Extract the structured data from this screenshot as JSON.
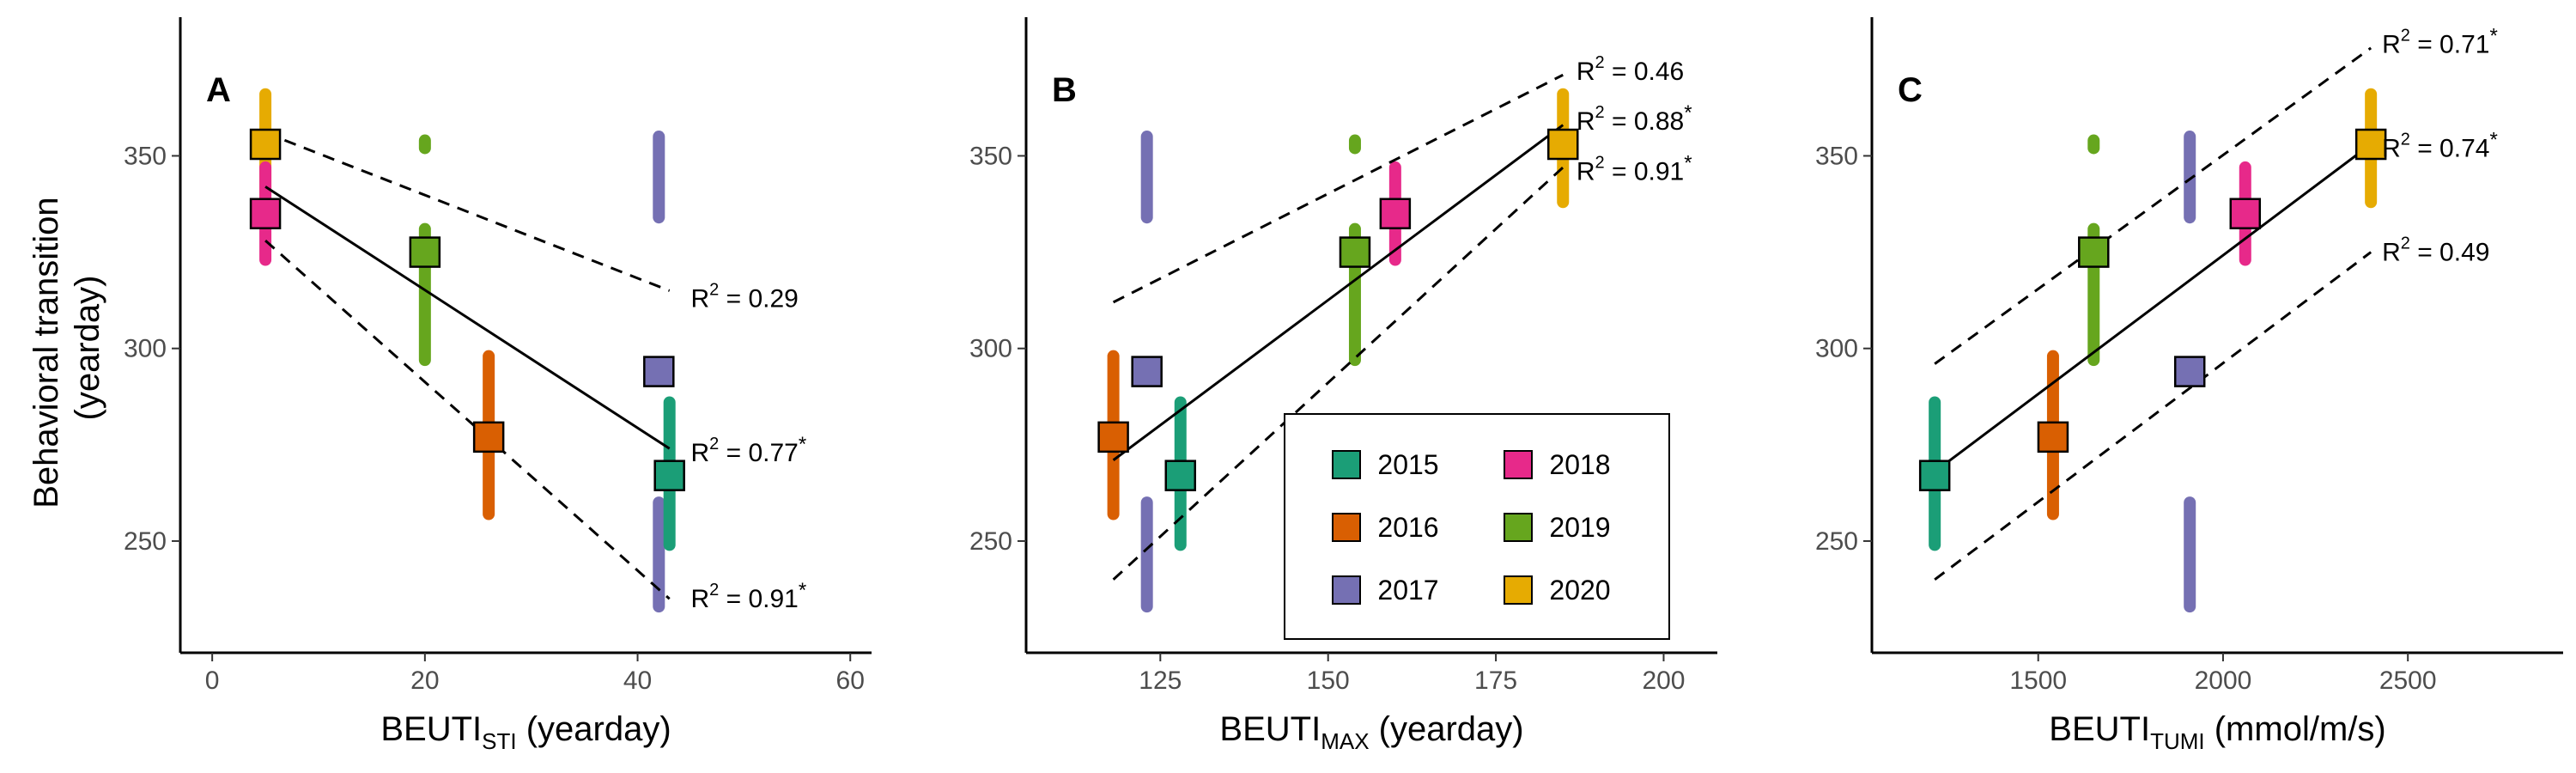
{
  "ylabel": [
    "Behavioral transition",
    "(yearday)"
  ],
  "colors": {
    "2015": "#1b9e77",
    "2016": "#d95f02",
    "2017": "#7570b3",
    "2018": "#e7298a",
    "2019": "#66a61e",
    "2020": "#e6ab02"
  },
  "legend": {
    "entries": [
      "2015",
      "2018",
      "2016",
      "2019",
      "2017",
      "2020"
    ]
  },
  "chart_data": [
    {
      "type": "scatter",
      "panel": "A",
      "xlabel_main": "BEUTI",
      "xlabel_sub": "STI",
      "xlabel_unit": " (yearday)",
      "xlim": [
        -3,
        62
      ],
      "ylim": [
        221,
        386
      ],
      "xticks": [
        0,
        20,
        40,
        60
      ],
      "yticks": [
        250,
        300,
        350
      ],
      "means": [
        {
          "year": "2015",
          "x": 43,
          "y": 267
        },
        {
          "year": "2016",
          "x": 26,
          "y": 277
        },
        {
          "year": "2017",
          "x": 42,
          "y": 294
        },
        {
          "year": "2018",
          "x": 5,
          "y": 335
        },
        {
          "year": "2019",
          "x": 20,
          "y": 325
        },
        {
          "year": "2020",
          "x": 5,
          "y": 353
        }
      ],
      "ranges": [
        {
          "year": "2020",
          "x": 5,
          "y": [
            338,
            366
          ]
        },
        {
          "year": "2018",
          "x": 5,
          "y": [
            323,
            347
          ]
        },
        {
          "year": "2019",
          "x": 20,
          "y": [
            297,
            331
          ]
        },
        {
          "year": "2019",
          "x": 20,
          "y": [
            352,
            354
          ]
        },
        {
          "year": "2016",
          "x": 26,
          "y": [
            257,
            298
          ]
        },
        {
          "year": "2017",
          "x": 42,
          "y": [
            233,
            260
          ]
        },
        {
          "year": "2017",
          "x": 42,
          "y": [
            334,
            355
          ]
        },
        {
          "year": "2015",
          "x": 43,
          "y": [
            249,
            286
          ]
        }
      ],
      "fits": [
        {
          "style": "solid",
          "x": [
            5,
            43
          ],
          "y": [
            342,
            274
          ]
        },
        {
          "style": "dashed",
          "x": [
            5,
            43
          ],
          "y": [
            356,
            315
          ]
        },
        {
          "style": "dashed",
          "x": [
            5,
            43
          ],
          "y": [
            328,
            235
          ]
        }
      ],
      "r2": [
        {
          "value": "0.29",
          "star": "",
          "x": 45,
          "y": 313
        },
        {
          "value": "0.77",
          "star": "*",
          "x": 45,
          "y": 273
        },
        {
          "value": "0.91",
          "star": "*",
          "x": 45,
          "y": 235
        }
      ]
    },
    {
      "type": "scatter",
      "panel": "B",
      "xlabel_main": "BEUTI",
      "xlabel_sub": "MAX",
      "xlabel_unit": " (yearday)",
      "xlim": [
        105,
        208
      ],
      "ylim": [
        221,
        386
      ],
      "xticks": [
        125,
        150,
        175,
        200
      ],
      "yticks": [
        250,
        300,
        350
      ],
      "means": [
        {
          "year": "2015",
          "x": 128,
          "y": 267
        },
        {
          "year": "2016",
          "x": 118,
          "y": 277
        },
        {
          "year": "2017",
          "x": 123,
          "y": 294
        },
        {
          "year": "2018",
          "x": 160,
          "y": 335
        },
        {
          "year": "2019",
          "x": 154,
          "y": 325
        },
        {
          "year": "2020",
          "x": 185,
          "y": 353
        }
      ],
      "ranges": [
        {
          "year": "2016",
          "x": 118,
          "y": [
            257,
            298
          ]
        },
        {
          "year": "2017",
          "x": 123,
          "y": [
            233,
            260
          ]
        },
        {
          "year": "2017",
          "x": 123,
          "y": [
            334,
            355
          ]
        },
        {
          "year": "2015",
          "x": 128,
          "y": [
            249,
            286
          ]
        },
        {
          "year": "2019",
          "x": 154,
          "y": [
            297,
            331
          ]
        },
        {
          "year": "2019",
          "x": 154,
          "y": [
            352,
            354
          ]
        },
        {
          "year": "2018",
          "x": 160,
          "y": [
            323,
            347
          ]
        },
        {
          "year": "2020",
          "x": 185,
          "y": [
            338,
            366
          ]
        }
      ],
      "fits": [
        {
          "style": "solid",
          "x": [
            118,
            185
          ],
          "y": [
            271,
            358
          ]
        },
        {
          "style": "dashed",
          "x": [
            118,
            185
          ],
          "y": [
            312,
            371
          ]
        },
        {
          "style": "dashed",
          "x": [
            118,
            185
          ],
          "y": [
            240,
            347
          ]
        }
      ],
      "r2": [
        {
          "value": "0.46",
          "star": "",
          "x": 187,
          "y": 372
        },
        {
          "value": "0.88",
          "star": "*",
          "x": 187,
          "y": 359
        },
        {
          "value": "0.91",
          "star": "*",
          "x": 187,
          "y": 346
        }
      ]
    },
    {
      "type": "scatter",
      "panel": "C",
      "xlabel_main": "BEUTI",
      "xlabel_sub": "TUMI",
      "xlabel_unit": " (mmol/m/s)",
      "xlim": [
        1050,
        2920
      ],
      "ylim": [
        221,
        386
      ],
      "xticks": [
        1500,
        2000,
        2500
      ],
      "yticks": [
        250,
        300,
        350
      ],
      "means": [
        {
          "year": "2015",
          "x": 1220,
          "y": 267
        },
        {
          "year": "2016",
          "x": 1540,
          "y": 277
        },
        {
          "year": "2017",
          "x": 1910,
          "y": 294
        },
        {
          "year": "2018",
          "x": 2060,
          "y": 335
        },
        {
          "year": "2019",
          "x": 1650,
          "y": 325
        },
        {
          "year": "2020",
          "x": 2400,
          "y": 353
        }
      ],
      "ranges": [
        {
          "year": "2015",
          "x": 1220,
          "y": [
            249,
            286
          ]
        },
        {
          "year": "2016",
          "x": 1540,
          "y": [
            257,
            298
          ]
        },
        {
          "year": "2019",
          "x": 1650,
          "y": [
            297,
            331
          ]
        },
        {
          "year": "2019",
          "x": 1650,
          "y": [
            352,
            354
          ]
        },
        {
          "year": "2017",
          "x": 1910,
          "y": [
            233,
            260
          ]
        },
        {
          "year": "2017",
          "x": 1910,
          "y": [
            334,
            355
          ]
        },
        {
          "year": "2018",
          "x": 2060,
          "y": [
            323,
            347
          ]
        },
        {
          "year": "2020",
          "x": 2400,
          "y": [
            338,
            366
          ]
        }
      ],
      "fits": [
        {
          "style": "solid",
          "x": [
            1220,
            2400
          ],
          "y": [
            268,
            353
          ]
        },
        {
          "style": "dashed",
          "x": [
            1220,
            2400
          ],
          "y": [
            296,
            378
          ]
        },
        {
          "style": "dashed",
          "x": [
            1220,
            2400
          ],
          "y": [
            240,
            325
          ]
        }
      ],
      "r2": [
        {
          "value": "0.71",
          "star": "*",
          "x": 2430,
          "y": 379
        },
        {
          "value": "0.74",
          "star": "*",
          "x": 2430,
          "y": 352
        },
        {
          "value": "0.49",
          "star": "",
          "x": 2430,
          "y": 325
        }
      ]
    }
  ]
}
